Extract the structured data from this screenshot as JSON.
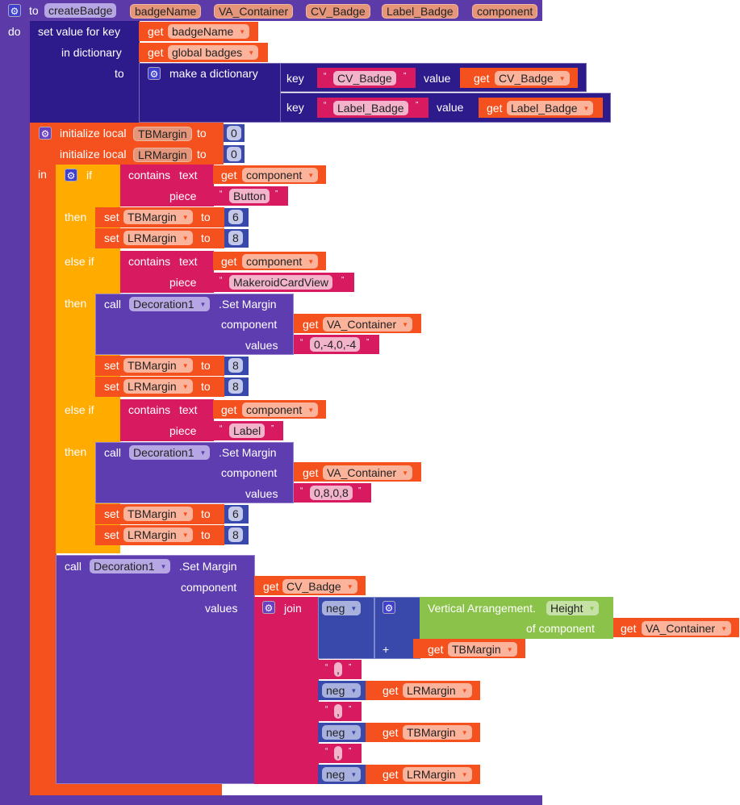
{
  "get": "get",
  "set": "set",
  "to": "to",
  "call": "call",
  "then": "then",
  "else_if": "else if",
  "procedure": {
    "keyword": "to",
    "name": "createBadge",
    "params": [
      "badgeName",
      "VA_Container",
      "CV_Badge",
      "Label_Badge",
      "component"
    ],
    "do_label": "do"
  },
  "dict_set": {
    "label_key": "set value for key",
    "label_dict": "in dictionary",
    "label_to": "to",
    "key_var": "badgeName",
    "dict_var": "global badges",
    "make": "make a dictionary",
    "entries": [
      {
        "key_label": "key",
        "key": "CV_Badge",
        "value_label": "value",
        "value": "CV_Badge"
      },
      {
        "key_label": "key",
        "key": "Label_Badge",
        "value_label": "value",
        "value": "Label_Badge"
      }
    ]
  },
  "locals": {
    "label": "initialize local",
    "in_label": "in",
    "vars": [
      {
        "name": "TBMargin",
        "value": "0"
      },
      {
        "name": "LRMargin",
        "value": "0"
      }
    ]
  },
  "if_block": {
    "if_label": "if",
    "contains": "contains",
    "mode": "text",
    "piece": "piece",
    "var": "component",
    "branches": [
      {
        "piece": "Button",
        "sets": [
          {
            "var": "TBMargin",
            "value": "6"
          },
          {
            "var": "LRMargin",
            "value": "8"
          }
        ]
      },
      {
        "piece": "MakeroidCardView",
        "call": {
          "component": "Decoration1",
          "method": ".Set Margin",
          "arg1": "component",
          "arg1_var": "VA_Container",
          "arg2": "values",
          "arg2_val": "0,-4,0,-4"
        },
        "sets": [
          {
            "var": "TBMargin",
            "value": "8"
          },
          {
            "var": "LRMargin",
            "value": "8"
          }
        ]
      },
      {
        "piece": "Label",
        "call": {
          "component": "Decoration1",
          "method": ".Set Margin",
          "arg1": "component",
          "arg1_var": "VA_Container",
          "arg2": "values",
          "arg2_val": "0,8,0,8"
        },
        "sets": [
          {
            "var": "TBMargin",
            "value": "6"
          },
          {
            "var": "LRMargin",
            "value": "8"
          }
        ]
      }
    ]
  },
  "final_call": {
    "component": "Decoration1",
    "method": ".Set Margin",
    "arg1": "component",
    "arg1_var": "CV_Badge",
    "arg2": "values",
    "join": "join",
    "neg": "neg",
    "plus": "+",
    "prop_component": "Vertical Arrangement.",
    "prop": "Height",
    "of_component": "of component",
    "prop_var": "VA_Container",
    "plus_var": "TBMargin",
    "separator": ",",
    "items": [
      "LRMargin",
      "TBMargin",
      "LRMargin"
    ]
  }
}
